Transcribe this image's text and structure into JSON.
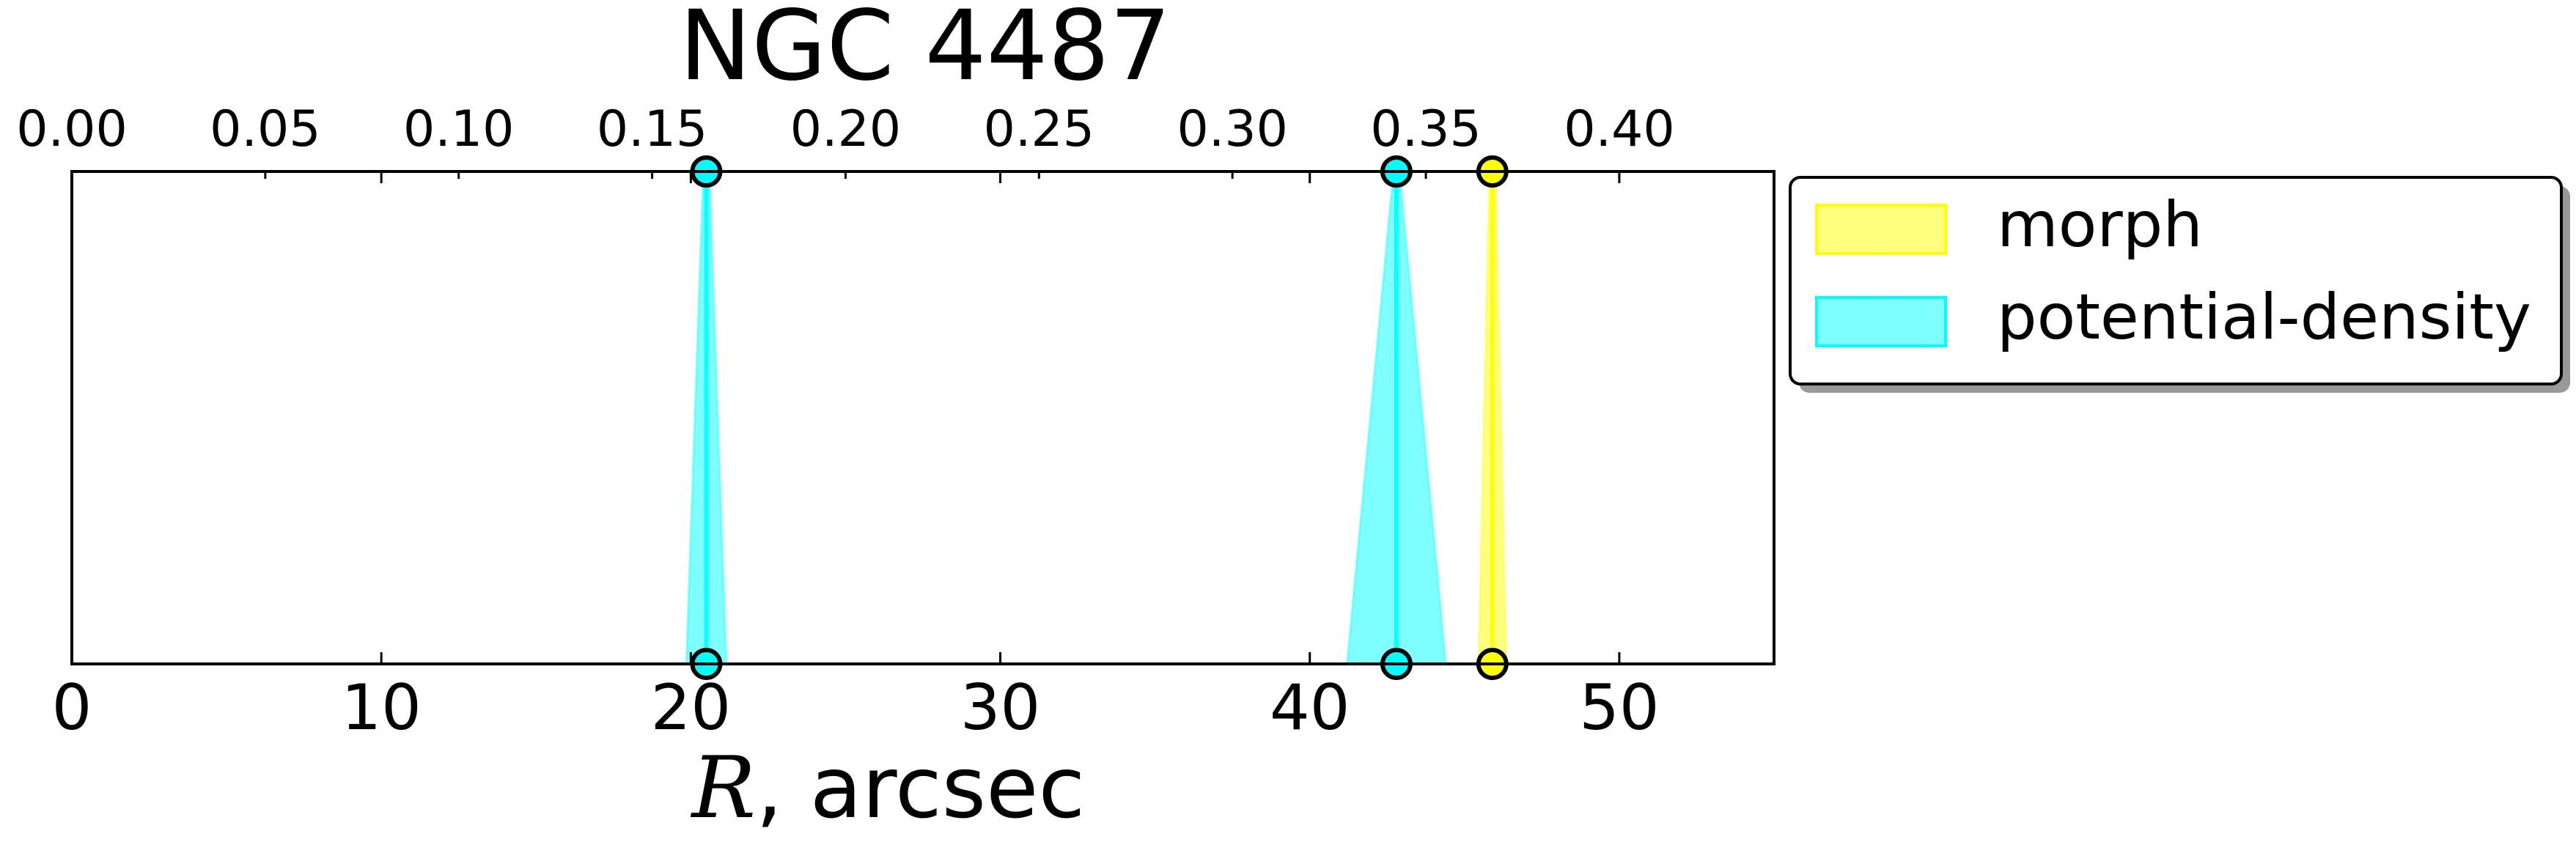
{
  "chart_data": {
    "type": "area",
    "title": "NGC 4487",
    "xlabel_symbol": "R",
    "xlabel_rest": ", arcsec",
    "xlim": [
      0,
      55
    ],
    "x_ticks": [
      "0",
      "10",
      "20",
      "30",
      "40",
      "50"
    ],
    "secondary_axis": {
      "position": "top",
      "xlim": [
        0.0,
        0.44
      ],
      "ticks": [
        "0.00",
        "0.05",
        "0.10",
        "0.15",
        "0.20",
        "0.25",
        "0.30",
        "0.35",
        "0.40"
      ]
    },
    "ylim": [
      0,
      1
    ],
    "y_ticks_visible": false,
    "grid": false,
    "legend_position": "outside-right-top",
    "series": [
      {
        "name": "morph",
        "color": "#ffff00",
        "peaks": [
          {
            "center": 45.9,
            "half_width_bottom": 0.45,
            "half_width_top": 0.1
          }
        ]
      },
      {
        "name": "potential-density",
        "color": "#00ffff",
        "peaks": [
          {
            "center": 20.5,
            "half_width_bottom": 0.65,
            "half_width_top": 0.1
          },
          {
            "center": 42.8,
            "half_width_bottom": 1.6,
            "half_width_top": 0.1
          }
        ]
      }
    ]
  }
}
